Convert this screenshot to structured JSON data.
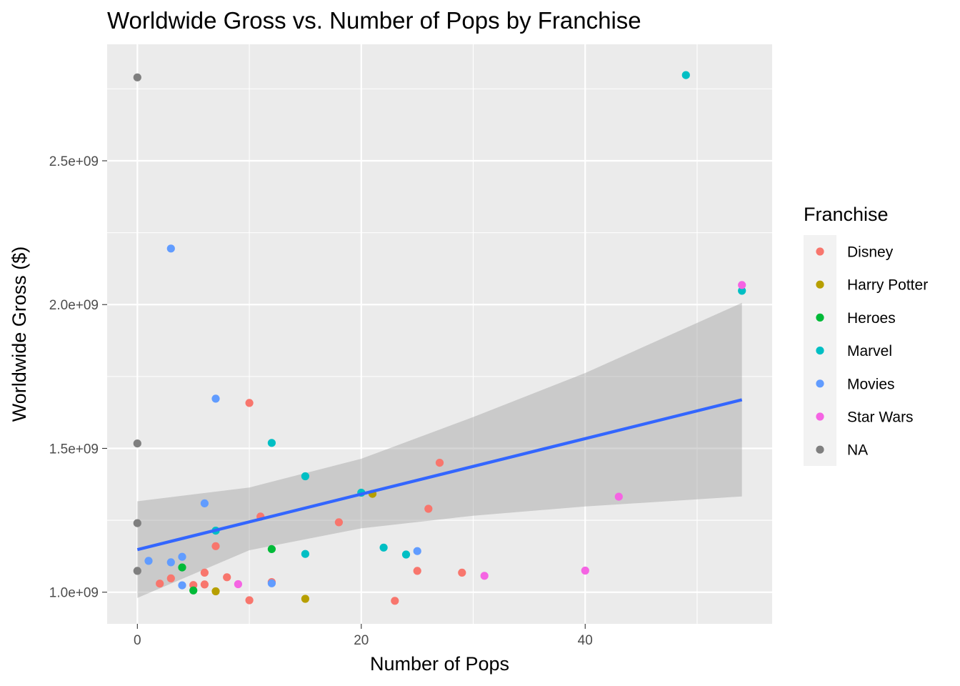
{
  "chart_data": {
    "type": "scatter",
    "title": "Worldwide Gross vs. Number of Pops by Franchise",
    "xlabel": "Number of Pops",
    "ylabel": "Worldwide Gross ($)",
    "xlim": [
      -2.7,
      56.7
    ],
    "ylim": [
      890000000,
      2905000000
    ],
    "x_ticks": [
      0,
      20,
      40
    ],
    "x_tick_labels": [
      "0",
      "20",
      "40"
    ],
    "x_minor_ticks": [
      10,
      30,
      50
    ],
    "y_ticks": [
      1000000000,
      1500000000,
      2000000000,
      2500000000
    ],
    "y_tick_labels": [
      "1.0e+09",
      "1.5e+09",
      "2.0e+09",
      "2.5e+09"
    ],
    "y_minor_ticks": [
      1250000000,
      1750000000,
      2250000000,
      2750000000
    ],
    "grid": true,
    "legend": {
      "title": "Franchise",
      "position": "right"
    },
    "series": [
      {
        "name": "Disney",
        "color": "#F8766D",
        "points": [
          [
            2,
            1030000000
          ],
          [
            3,
            1048000000
          ],
          [
            5,
            1025000000
          ],
          [
            6,
            1068000000
          ],
          [
            6,
            1027000000
          ],
          [
            7,
            1160000000
          ],
          [
            8,
            1052000000
          ],
          [
            10,
            1658000000
          ],
          [
            10,
            972000000
          ],
          [
            11,
            1263000000
          ],
          [
            12,
            1035000000
          ],
          [
            18,
            1243000000
          ],
          [
            23,
            970000000
          ],
          [
            25,
            1074000000
          ],
          [
            26,
            1290000000
          ],
          [
            27,
            1450000000
          ],
          [
            29,
            1068000000
          ]
        ]
      },
      {
        "name": "Harry Potter",
        "color": "#B79F00",
        "points": [
          [
            7,
            1003000000
          ],
          [
            15,
            977000000
          ],
          [
            21,
            1342000000
          ]
        ]
      },
      {
        "name": "Heroes",
        "color": "#00BA38",
        "points": [
          [
            4,
            1086000000
          ],
          [
            5,
            1006000000
          ],
          [
            12,
            1150000000
          ]
        ]
      },
      {
        "name": "Marvel",
        "color": "#00BFC4",
        "points": [
          [
            7,
            1214000000
          ],
          [
            12,
            1519000000
          ],
          [
            15,
            1403000000
          ],
          [
            15,
            1133000000
          ],
          [
            20,
            1346000000
          ],
          [
            22,
            1155000000
          ],
          [
            24,
            1131000000
          ],
          [
            49,
            2798000000
          ],
          [
            54,
            2048000000
          ]
        ]
      },
      {
        "name": "Movies",
        "color": "#619CFF",
        "points": [
          [
            1,
            1109000000
          ],
          [
            3,
            2195000000
          ],
          [
            3,
            1104000000
          ],
          [
            4,
            1123000000
          ],
          [
            4,
            1024000000
          ],
          [
            6,
            1309000000
          ],
          [
            7,
            1673000000
          ],
          [
            12,
            1031000000
          ],
          [
            25,
            1143000000
          ]
        ]
      },
      {
        "name": "Star Wars",
        "color": "#F564E3",
        "points": [
          [
            9,
            1028000000
          ],
          [
            31,
            1057000000
          ],
          [
            40,
            1075000000
          ],
          [
            43,
            1332000000
          ],
          [
            54,
            2068000000
          ]
        ]
      },
      {
        "name": "NA",
        "color": "#7F7F7F",
        "points": [
          [
            0,
            2790000000
          ],
          [
            0,
            1517000000
          ],
          [
            0,
            1240000000
          ],
          [
            0,
            1074000000
          ]
        ]
      }
    ],
    "trend": {
      "method": "lm",
      "color": "#3366FF",
      "ribbon_color": "#999999",
      "x": [
        0,
        54
      ],
      "y": [
        1148000000,
        1669000000
      ],
      "ci_x": [
        0,
        10,
        20,
        30,
        40,
        54
      ],
      "ci_lower": [
        980000000,
        1146000000,
        1222000000,
        1266000000,
        1298000000,
        1333000000
      ],
      "ci_upper": [
        1316000000,
        1364000000,
        1464000000,
        1609000000,
        1762000000,
        2006000000
      ]
    }
  }
}
